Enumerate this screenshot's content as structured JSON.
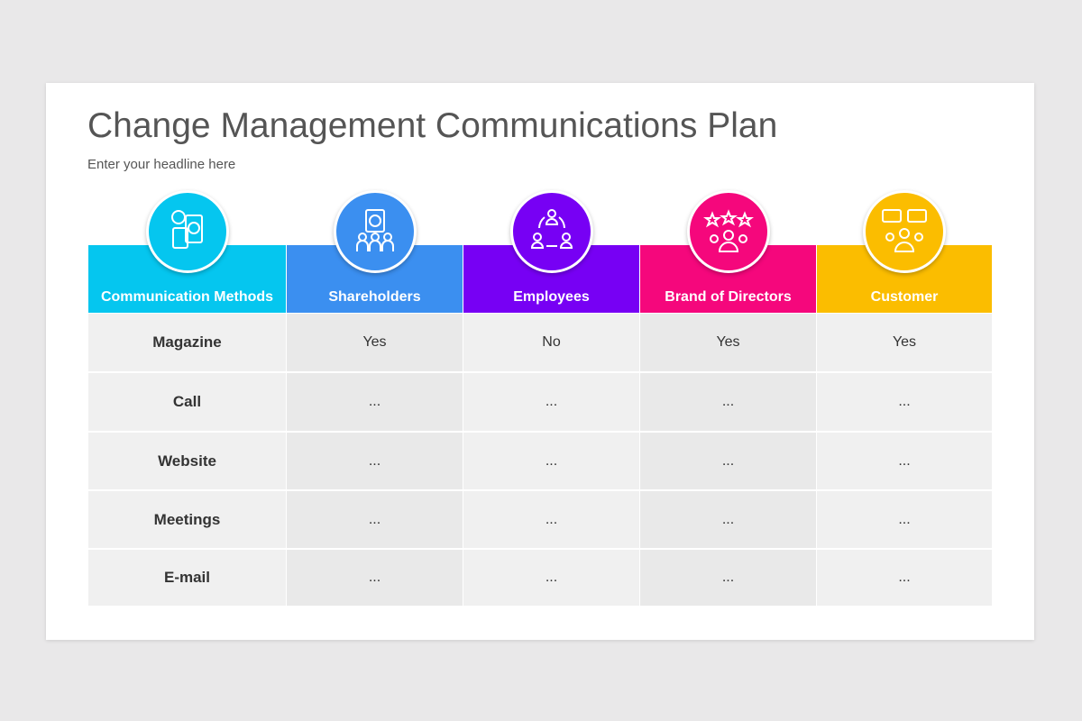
{
  "header": {
    "title": "Change Management Communications Plan",
    "subtitle": "Enter your headline here"
  },
  "table": {
    "columns": [
      "Communication Methods",
      "Shareholders",
      "Employees",
      "Brand of Directors",
      "Customer"
    ],
    "colors": [
      "#05c6ef",
      "#3b8ff0",
      "#7700f4",
      "#f5077c",
      "#fbbd00"
    ],
    "rows": [
      [
        "Magazine",
        "Yes",
        "No",
        "Yes",
        "Yes"
      ],
      [
        "Call",
        "...",
        "...",
        "...",
        "..."
      ],
      [
        "Website",
        "...",
        "...",
        "...",
        "..."
      ],
      [
        "Meetings",
        "...",
        "...",
        "...",
        "..."
      ],
      [
        "E-mail",
        "...",
        "...",
        "...",
        "..."
      ]
    ]
  }
}
